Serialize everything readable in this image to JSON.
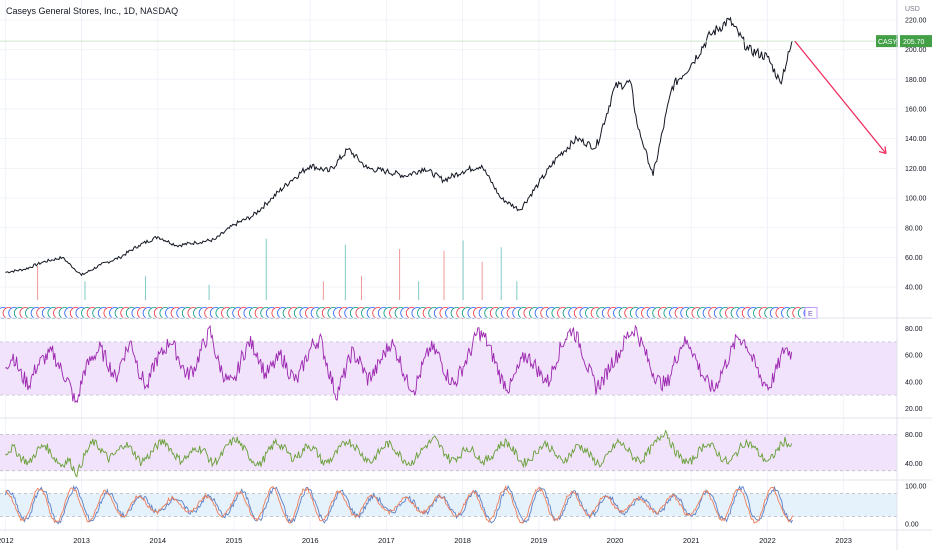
{
  "header": {
    "title": "Caseys General Stores, Inc., 1D, NASDAQ"
  },
  "price_axis": {
    "currency": "USD"
  },
  "last_price": {
    "ticker": "CASY",
    "value": "205.70"
  },
  "colors": {
    "price_line": "#131722",
    "rsi": "#9c27b0",
    "stoch_line": "#689f38",
    "stoch_k": "#5b80c7",
    "stoch_d": "#ef7f5a",
    "band_purple": "#f1e3fb",
    "band_blue": "#e6f2fb",
    "badge_label": "#43a047",
    "arrow": "#ef3060",
    "volume_green": "#80cbc4",
    "volume_red": "#ef9a9a",
    "div_blue": "#2962ff",
    "div_red": "#f23645",
    "div_green": "#089981"
  },
  "chart_data": [
    {
      "type": "line",
      "name": "price",
      "x": [
        "2012-01-01",
        "2012-04-01",
        "2012-07-01",
        "2012-10-01",
        "2013-01-01",
        "2013-04-01",
        "2013-07-01",
        "2013-10-01",
        "2014-01-01",
        "2014-04-01",
        "2014-07-01",
        "2014-10-01",
        "2015-01-01",
        "2015-04-01",
        "2015-07-01",
        "2015-10-01",
        "2016-01-01",
        "2016-04-01",
        "2016-07-01",
        "2016-10-01",
        "2017-01-01",
        "2017-04-01",
        "2017-07-01",
        "2017-10-01",
        "2018-01-01",
        "2018-04-01",
        "2018-07-01",
        "2018-10-01",
        "2019-01-01",
        "2019-04-01",
        "2019-07-01",
        "2019-10-01",
        "2020-01-01",
        "2020-03-15",
        "2020-04-15",
        "2020-07-01",
        "2020-10-01",
        "2021-01-01",
        "2021-04-01",
        "2021-07-01",
        "2021-10-01",
        "2022-01-01",
        "2022-03-01",
        "2022-05-01"
      ],
      "values": [
        50,
        52,
        57,
        60,
        48,
        55,
        60,
        68,
        74,
        68,
        70,
        72,
        82,
        88,
        100,
        112,
        122,
        118,
        133,
        120,
        118,
        115,
        120,
        112,
        118,
        122,
        100,
        92,
        110,
        128,
        140,
        134,
        175,
        178,
        150,
        115,
        175,
        190,
        210,
        220,
        200,
        195,
        178,
        205.7
      ],
      "y_axis": {
        "ticks": [
          "220.00",
          "200.00",
          "180.00",
          "160.00",
          "140.00",
          "120.00",
          "100.00",
          "80.00",
          "60.00",
          "40.00"
        ],
        "ylim": [
          30,
          228
        ]
      },
      "x_axis": {
        "ticks": [
          "2012",
          "2013",
          "2014",
          "2015",
          "2016",
          "2017",
          "2018",
          "2019",
          "2020",
          "2021",
          "2022",
          "2023"
        ]
      }
    },
    {
      "type": "line",
      "name": "RSI",
      "x_range": [
        "2012-01-01",
        "2022-05-01"
      ],
      "values": [
        52,
        60,
        45,
        38,
        52,
        58,
        62,
        50,
        40,
        22,
        48,
        58,
        65,
        55,
        42,
        60,
        70,
        48,
        35,
        55,
        62,
        72,
        58,
        45,
        50,
        66,
        78,
        55,
        42,
        38,
        58,
        70,
        62,
        45,
        52,
        60,
        48,
        40,
        55,
        68,
        72,
        50,
        30,
        45,
        62,
        55,
        42,
        48,
        60,
        70,
        58,
        40,
        35,
        52,
        66,
        60,
        46,
        38,
        50,
        62,
        78,
        72,
        58,
        42,
        35,
        48,
        60,
        55,
        45,
        40,
        58,
        72,
        80,
        68,
        50,
        36,
        42,
        55,
        62,
        75,
        80,
        66,
        50,
        40,
        38,
        55,
        70,
        68,
        52,
        40,
        34,
        48,
        60,
        74,
        70,
        55,
        42,
        36,
        50,
        66,
        60
      ],
      "y_axis": {
        "ticks": [
          "80.00",
          "60.00",
          "40.00",
          "20.00"
        ],
        "ylim": [
          15,
          85
        ],
        "band": [
          30,
          70
        ]
      }
    },
    {
      "type": "line",
      "name": "oscillator",
      "x_range": [
        "2012-01-01",
        "2022-05-01"
      ],
      "values": [
        55,
        62,
        48,
        40,
        58,
        66,
        50,
        38,
        45,
        25,
        52,
        70,
        60,
        46,
        55,
        68,
        58,
        42,
        50,
        64,
        72,
        56,
        44,
        50,
        62,
        58,
        40,
        48,
        66,
        74,
        60,
        45,
        38,
        55,
        70,
        62,
        48,
        52,
        66,
        58,
        40,
        46,
        60,
        72,
        64,
        50,
        42,
        56,
        68,
        60,
        46,
        40,
        54,
        66,
        74,
        58,
        44,
        50,
        62,
        56,
        42,
        48,
        64,
        70,
        56,
        40,
        46,
        60,
        68,
        54,
        42,
        52,
        66,
        58,
        44,
        38,
        56,
        70,
        62,
        48,
        44,
        58,
        72,
        86,
        60,
        46,
        40,
        54,
        68,
        62,
        48,
        40,
        56,
        70,
        64,
        50,
        42,
        58,
        72,
        60
      ],
      "y_axis": {
        "ticks": [
          "80.00",
          "40.00"
        ],
        "ylim": [
          20,
          100
        ],
        "band": [
          30,
          80
        ]
      }
    },
    {
      "type": "line",
      "name": "stochastic",
      "series_names": [
        "K",
        "D"
      ],
      "x_range": [
        "2012-01-01",
        "2022-05-01"
      ],
      "y_axis": {
        "ticks": [
          "100.00",
          "0.00"
        ],
        "ylim": [
          -10,
          110
        ],
        "band": [
          20,
          80
        ]
      }
    },
    {
      "type": "bar",
      "name": "volume",
      "x": [
        "2012-06-01",
        "2013-01-15",
        "2013-11-01",
        "2014-09-01",
        "2015-06-01",
        "2016-03-01",
        "2016-06-15",
        "2016-09-01",
        "2017-03-01",
        "2017-06-01",
        "2017-10-01",
        "2018-01-01",
        "2018-04-01",
        "2018-07-01",
        "2018-09-15"
      ],
      "values": [
        40,
        22,
        28,
        18,
        72,
        22,
        65,
        28,
        60,
        22,
        58,
        70,
        45,
        62,
        22
      ],
      "colors": [
        "red",
        "green",
        "green",
        "green",
        "green",
        "red",
        "green",
        "red",
        "red",
        "green",
        "red",
        "green",
        "red",
        "green",
        "green"
      ]
    }
  ]
}
